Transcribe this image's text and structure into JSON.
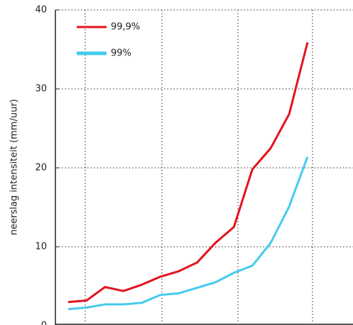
{
  "chart_data": {
    "type": "line",
    "y_label": "neerslag intensiteit (mm/uur)",
    "categories": [
      null,
      null,
      null,
      null,
      null,
      null,
      null,
      null,
      null,
      null,
      null,
      null,
      null,
      null
    ],
    "series": [
      {
        "name": "99,9%",
        "color": "#e3141e",
        "values": [
          3.0,
          3.2,
          4.9,
          4.4,
          5.2,
          6.2,
          6.9,
          8.0,
          10.5,
          12.5,
          19.8,
          22.5,
          26.8,
          35.9
        ]
      },
      {
        "name": "99%",
        "color": "#45cbee",
        "values": [
          2.1,
          2.3,
          2.7,
          2.7,
          2.9,
          3.9,
          4.1,
          4.8,
          5.5,
          6.7,
          7.6,
          10.5,
          15.1,
          21.4
        ]
      }
    ],
    "ylim": [
      0,
      40
    ],
    "yticks": [
      0,
      10,
      20,
      30,
      40
    ],
    "grid": true
  }
}
